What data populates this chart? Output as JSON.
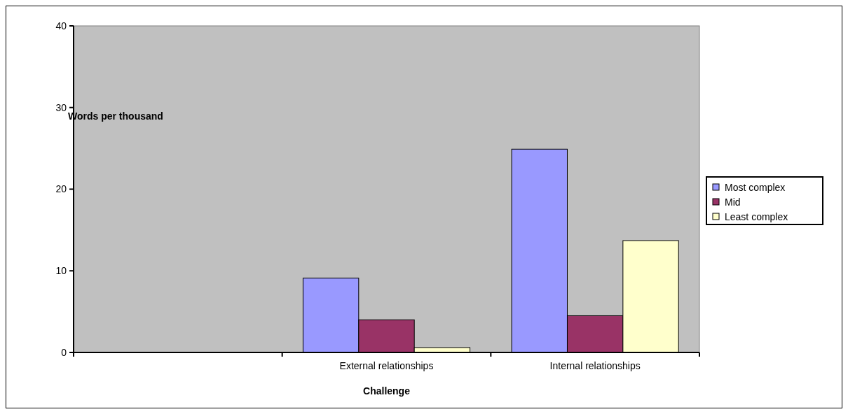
{
  "chart_data": {
    "type": "bar",
    "xlabel": "Challenge",
    "ylabel": "Words per thousand",
    "categories": [
      null,
      "External relationships",
      "Internal relationships"
    ],
    "series": [
      {
        "name": "Most complex",
        "color": "#9999ff",
        "values": [
          null,
          9.1,
          24.9
        ]
      },
      {
        "name": "Mid",
        "color": "#993366",
        "values": [
          null,
          4.0,
          4.5
        ]
      },
      {
        "name": "Least complex",
        "color": "#ffffcc",
        "values": [
          null,
          0.6,
          13.7
        ]
      }
    ],
    "ylim": [
      0,
      40
    ],
    "yticks": [
      0,
      10,
      20,
      30,
      40
    ],
    "legend": "right",
    "grid": false
  }
}
